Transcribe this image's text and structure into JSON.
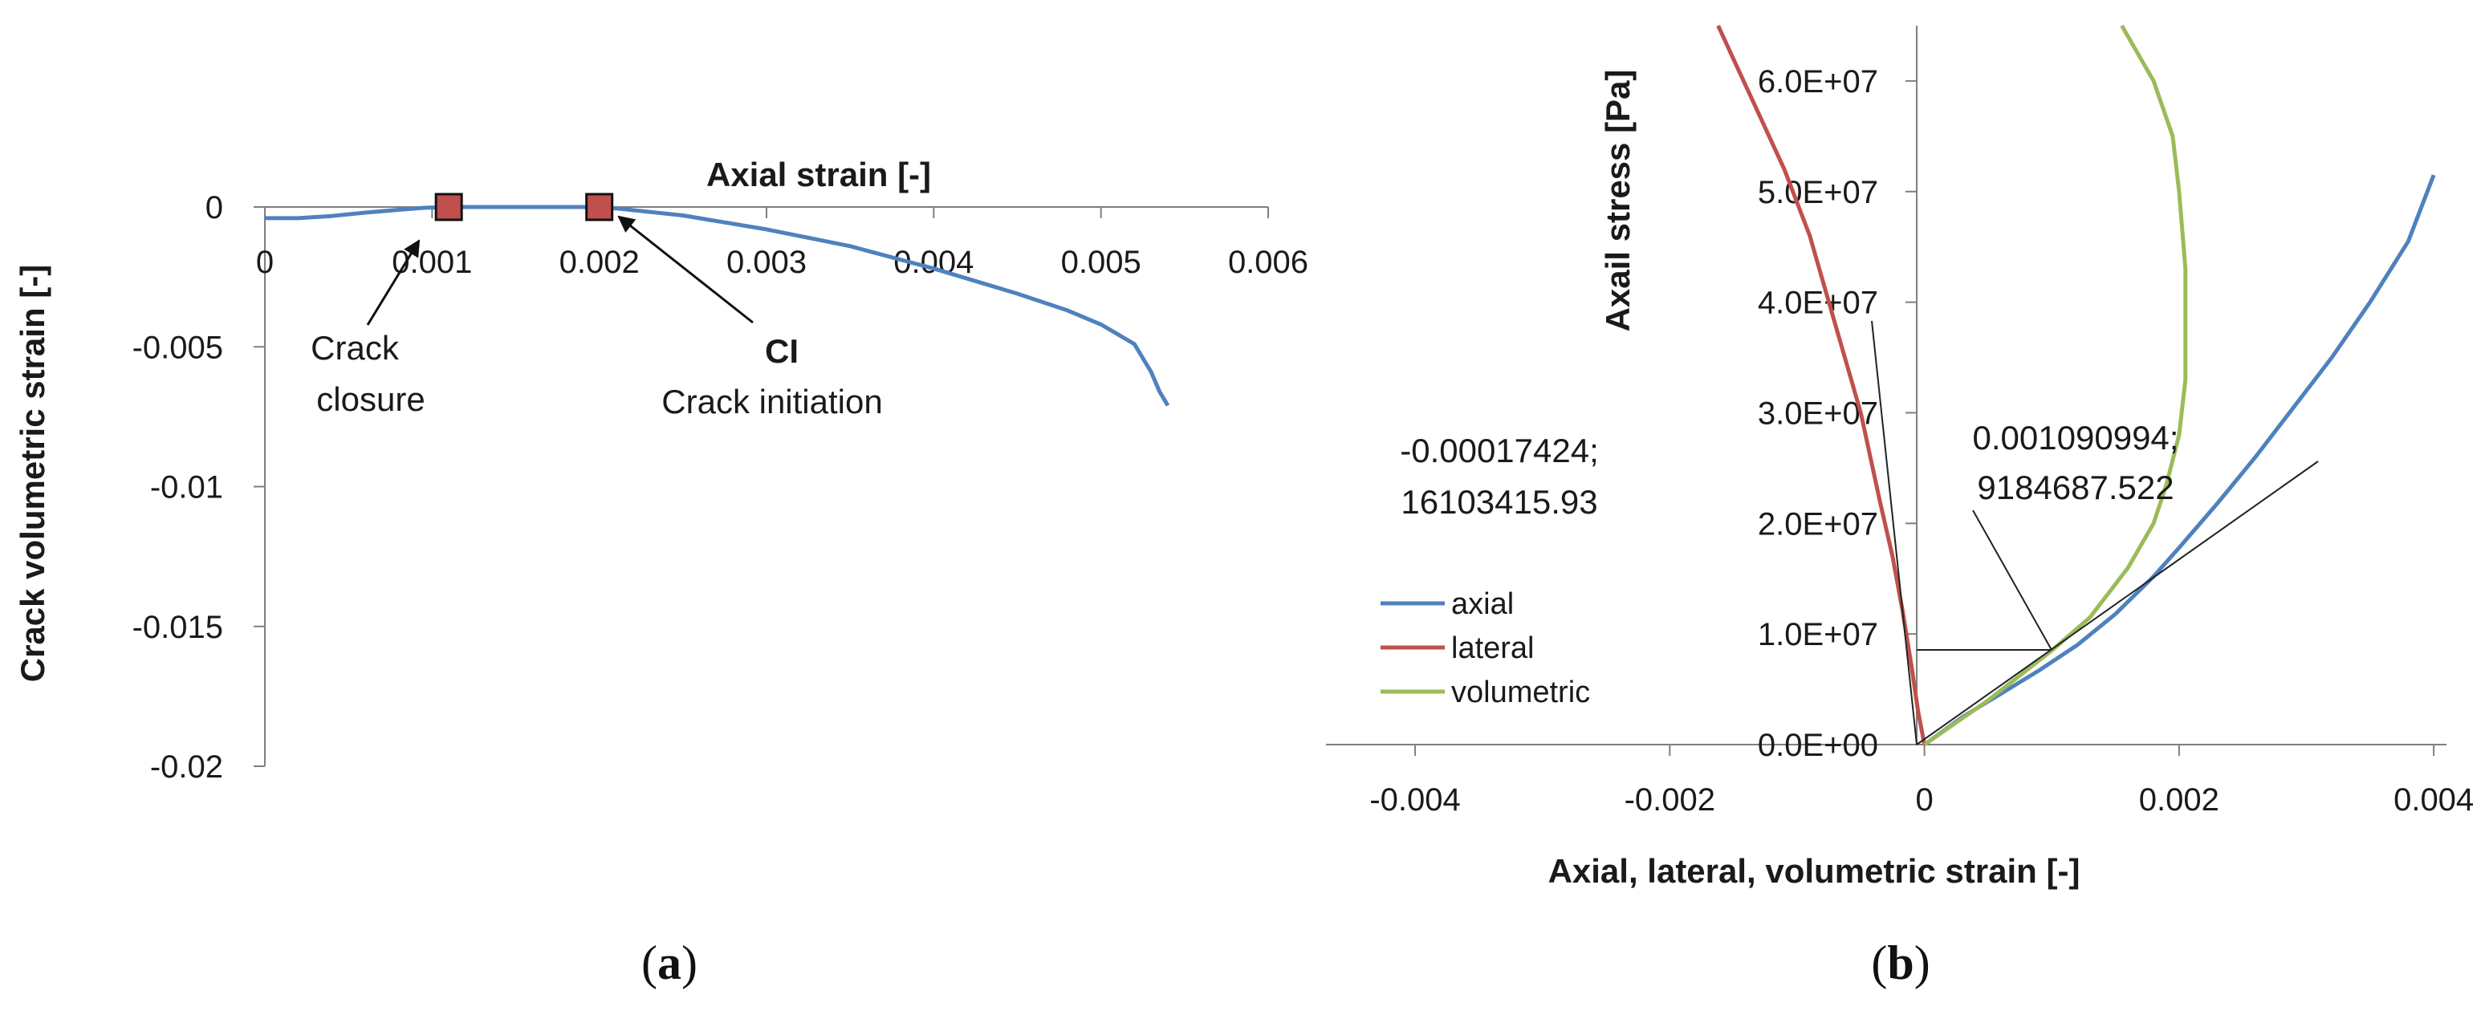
{
  "chart_data": [
    {
      "panel": "a",
      "type": "line",
      "xlabel": "Axial strain  [-]",
      "ylabel": "Crack volumetric strain [-]",
      "xlim": [
        0,
        0.006
      ],
      "ylim": [
        -0.02,
        0
      ],
      "x_ticks": [
        "0",
        "0.001",
        "0.002",
        "0.003",
        "0.004",
        "0.005",
        "0.006"
      ],
      "y_ticks": [
        "0",
        "-0.005",
        "-0.01",
        "-0.015",
        "-0.02"
      ],
      "series": [
        {
          "name": "crack volumetric strain",
          "color": "#4F81BD",
          "x": [
            0,
            0.0002,
            0.0004,
            0.0006,
            0.0008,
            0.00095,
            0.0011,
            0.0013,
            0.0016,
            0.0019,
            0.0021,
            0.0025,
            0.003,
            0.0035,
            0.004,
            0.0045,
            0.0048,
            0.005,
            0.0052,
            0.0053,
            0.00535,
            0.0054
          ],
          "y": [
            -0.0004,
            -0.0004,
            -0.00032,
            -0.0002,
            -0.0001,
            -3e-05,
            0,
            0,
            0,
            0,
            -5e-05,
            -0.0003,
            -0.0008,
            -0.0014,
            -0.0022,
            -0.0031,
            -0.0037,
            -0.0042,
            -0.0049,
            -0.0059,
            -0.0066,
            -0.0071
          ]
        }
      ],
      "markers": [
        {
          "name": "crack-closure",
          "x": 0.0011,
          "y": 0,
          "color": "#C0504D"
        },
        {
          "name": "crack-initiation",
          "x": 0.002,
          "y": 0,
          "color": "#C0504D"
        }
      ],
      "annotations": {
        "closure_line1": "Crack",
        "closure_line2": "closure",
        "ci_abbrev": "CI",
        "ci_full": "Crack initiation"
      }
    },
    {
      "panel": "b",
      "type": "line",
      "xlabel": "Axial, lateral, volumetric strain [-]",
      "ylabel": "Axail stress  [Pa]",
      "xlim": [
        -0.0047,
        0.0041
      ],
      "ylim": [
        0,
        65000000
      ],
      "x_ticks": [
        "-0.004",
        "-0.002",
        "0",
        "0.002",
        "0.004"
      ],
      "y_ticks": [
        "0.0E+00",
        "1.0E+07",
        "2.0E+07",
        "3.0E+07",
        "4.0E+07",
        "5.0E+07",
        "6.0E+07"
      ],
      "series": [
        {
          "name": "axial",
          "color": "#4F81BD",
          "x": [
            0,
            0.0003,
            0.0006,
            0.0009,
            0.0012,
            0.0015,
            0.0018,
            0.002,
            0.0023,
            0.0026,
            0.0029,
            0.0032,
            0.0035,
            0.0038,
            0.004
          ],
          "y": [
            0,
            2500000,
            4600000,
            6700000,
            9000000,
            11800000,
            15200000,
            17800000,
            21800000,
            26000000,
            30500000,
            35000000,
            40000000,
            45500000,
            51500000
          ]
        },
        {
          "name": "lateral",
          "color": "#C0504D",
          "x": [
            0,
            -5e-05,
            -0.0001,
            -0.00017,
            -0.00025,
            -0.00035,
            -0.0005,
            -0.0007,
            -0.0009,
            -0.0011,
            -0.0013,
            -0.0015,
            -0.00162
          ],
          "y": [
            0,
            3000000,
            7000000,
            12000000,
            17000000,
            22000000,
            30000000,
            38000000,
            46000000,
            52000000,
            57000000,
            62000000,
            65000000
          ]
        },
        {
          "name": "volumetric",
          "color": "#9BBB59",
          "x": [
            0,
            0.0005,
            0.001,
            0.0013,
            0.0016,
            0.0018,
            0.0019,
            0.002,
            0.00205,
            0.00205,
            0.002,
            0.00195,
            0.0018,
            0.00155
          ],
          "y": [
            0,
            4000000,
            8500000,
            11500000,
            16000000,
            20000000,
            23500000,
            28000000,
            33000000,
            43000000,
            50000000,
            55000000,
            60000000,
            65000000
          ]
        }
      ],
      "legend": [
        "axial",
        "lateral",
        "volumetric"
      ],
      "legend_position": "left-bottom",
      "annotations": {
        "left_line1": "-0.00017424;",
        "left_line2": "16103415.93",
        "right_line1": "0.001090994;",
        "right_line2": "9184687.522"
      }
    }
  ],
  "panel_labels": {
    "a_open": "(",
    "a_letter": "a",
    "a_close": ")",
    "b_open": "(",
    "b_letter": "b",
    "b_close": ")"
  }
}
